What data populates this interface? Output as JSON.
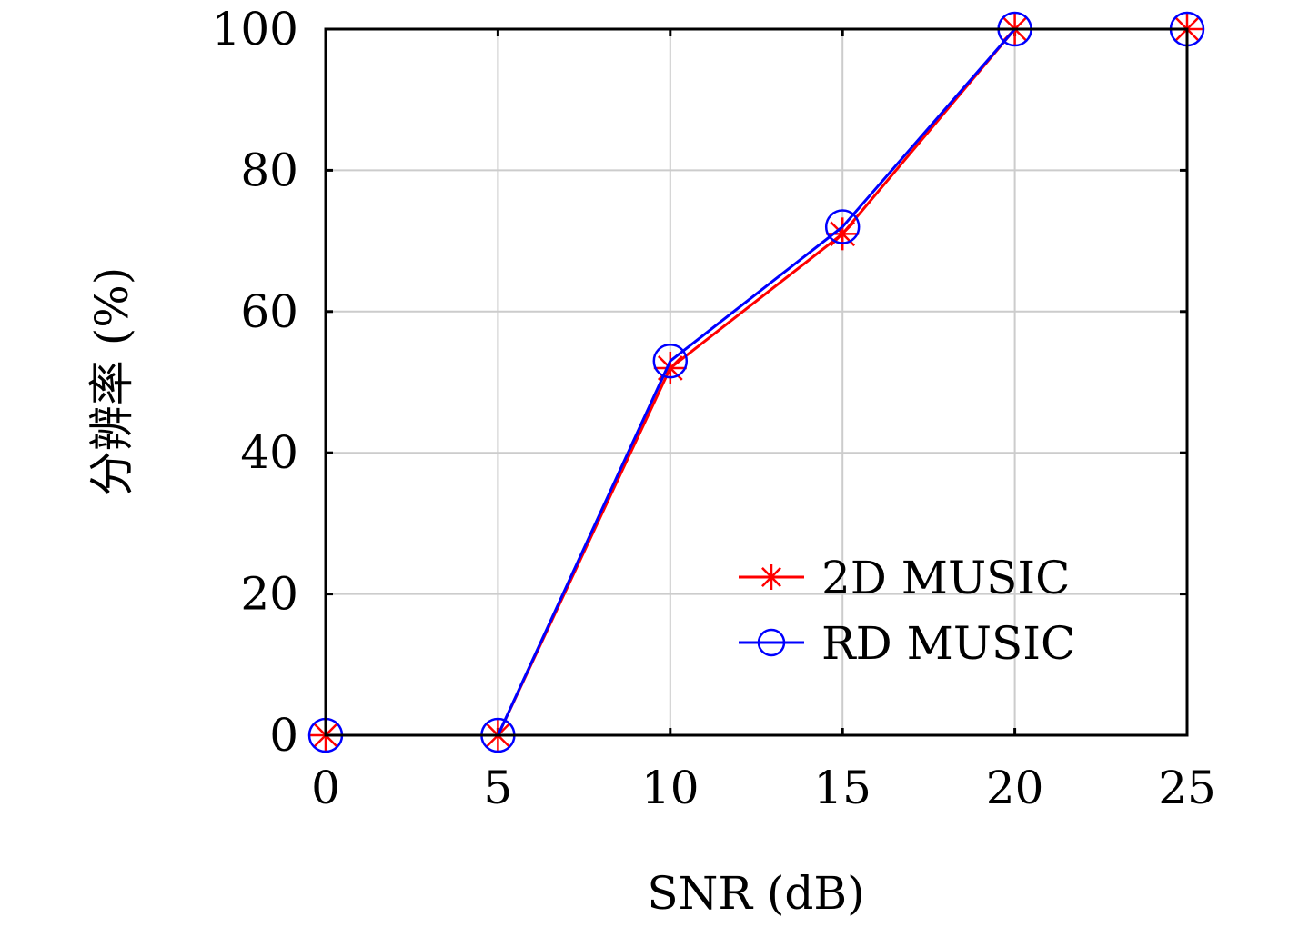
{
  "chart_data": {
    "type": "line",
    "xlabel": "SNR (dB)",
    "ylabel": "分辨率 (%)",
    "xlim": [
      0,
      25
    ],
    "ylim": [
      0,
      100
    ],
    "xticks": [
      0,
      5,
      10,
      15,
      20,
      25
    ],
    "yticks": [
      0,
      20,
      40,
      60,
      80,
      100
    ],
    "grid": true,
    "legend_position": "bottom-right",
    "x": [
      0,
      5,
      10,
      15,
      20,
      25
    ],
    "series": [
      {
        "name": "2D MUSIC",
        "values": [
          0,
          0,
          52,
          71,
          100,
          100
        ],
        "color": "#ff0000",
        "marker": "asterisk"
      },
      {
        "name": "RD MUSIC",
        "values": [
          0,
          0,
          53,
          72,
          100,
          100
        ],
        "color": "#0000ff",
        "marker": "circle"
      }
    ]
  }
}
